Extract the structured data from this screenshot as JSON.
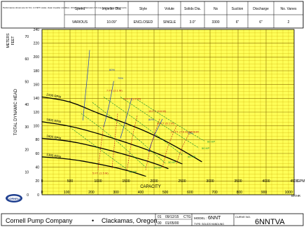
{
  "header": {
    "note": "Performance shown are for 6.0, 1.0 60°F water, clean impeller condition. Other impeller diameters 6.0 may require curve adjustments.",
    "columns": [
      "Speed",
      "Impeller Dia.",
      "Style",
      "Volute",
      "Solids Dia.",
      "Ns",
      "Suction",
      "Discharge",
      "No. Vanes"
    ],
    "values": [
      "VARIOUS",
      "10.09\"",
      "ENCLOSED",
      "SINGLE",
      "3.0\"",
      "3300",
      "6\"",
      "6\"",
      "2"
    ]
  },
  "footer": {
    "company": "Cornell Pump Company",
    "bullet": "•",
    "location": "Clackamas, Oregon",
    "rev1": "01",
    "date1": "09/12/15",
    "initials": "CTG",
    "rev0": "00",
    "date0": "01/05/00",
    "model_label": "MODEL :",
    "model": "6NNT",
    "curve_no_label": "CURVE NO.",
    "curve_no": "6NNTVA",
    "type_label": "TYPE: SOLIDS HANDLING",
    "logo_text": "CORNELL"
  },
  "chart_data": {
    "type": "line",
    "title": "",
    "xlabel": "CAPACITY",
    "x_units_top": "GPM",
    "x_units_bottom": "M³/HR",
    "ylabel": "TOTAL DYNAMIC HEAD",
    "y_units_left": "METERS",
    "y_units_right": "FEET",
    "xlim_gpm": [
      0,
      4500
    ],
    "ylim_ft": [
      0,
      240
    ],
    "x_ticks_gpm": [
      "0",
      "500",
      "1000",
      "1500",
      "2000",
      "2500",
      "3000",
      "3500",
      "4000",
      "4500"
    ],
    "x_ticks_m3hr": [
      "0",
      "100",
      "200",
      "300",
      "400",
      "500",
      "600",
      "700",
      "800",
      "900",
      "1000"
    ],
    "y_ticks_ft": [
      "0",
      "20",
      "40",
      "60",
      "80",
      "100",
      "120",
      "140",
      "160",
      "180",
      "200",
      "220",
      "240"
    ],
    "y_ticks_m": [
      "0",
      "10",
      "20",
      "30",
      "40",
      "50",
      "60",
      "70"
    ],
    "grid": true,
    "head_series": [
      {
        "name": "2100 RPM",
        "x": [
          0,
          500,
          1000,
          1500,
          2000,
          2500,
          2850
        ],
        "y": [
          142,
          136,
          118,
          104,
          87,
          65,
          48
        ]
      },
      {
        "name": "1800 RPM",
        "x": [
          0,
          500,
          1000,
          1500,
          2000,
          2500
        ],
        "y": [
          106,
          100,
          89,
          76,
          62,
          45
        ]
      },
      {
        "name": "1600 RPM",
        "x": [
          0,
          500,
          1000,
          1500,
          2000,
          2250
        ],
        "y": [
          82,
          78,
          69,
          58,
          46,
          38
        ]
      },
      {
        "name": "1300 RPM",
        "x": [
          0,
          500,
          1000,
          1500,
          1850
        ],
        "y": [
          55,
          52,
          45,
          36,
          27
        ]
      }
    ],
    "efficiency_labels": [
      "60%",
      "75%",
      "80%",
      "75%"
    ],
    "npshr_labels": [
      "5 FT. (1.5 M)",
      "7 FT. (2.1 M)",
      "10 FT. (3.0 M)",
      "15 FT. (4.6 M)",
      "20 FT. (6.1 M)",
      "25 FT. (7.6 M) NPSHR"
    ],
    "power_labels": [
      "10 HP",
      "20 HP",
      "30 HP",
      "40 HP",
      "50 HP",
      "60 HP"
    ]
  }
}
